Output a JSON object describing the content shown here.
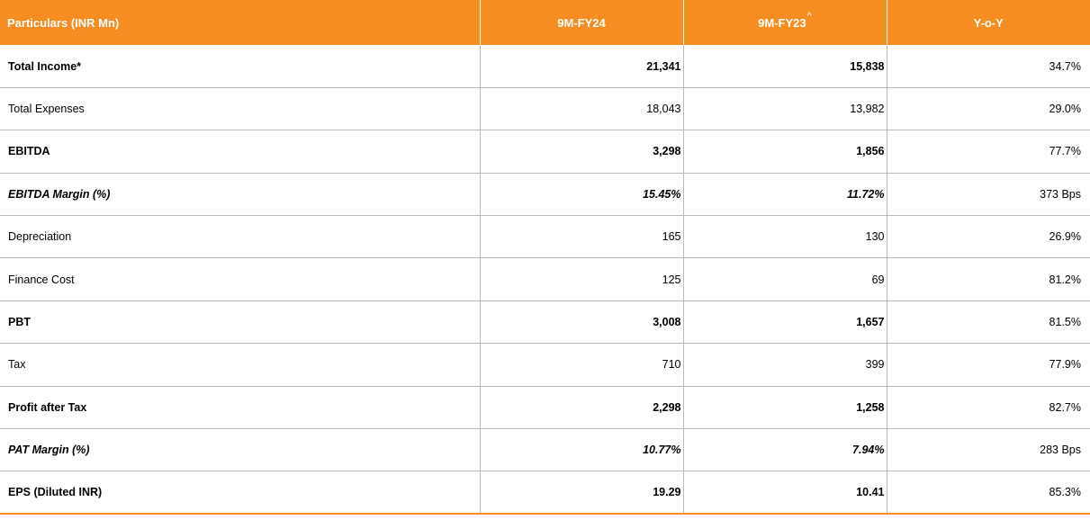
{
  "table": {
    "headers": {
      "particulars": "Particulars (INR Mn)",
      "col1": "9M-FY24",
      "col2": "9M-FY23",
      "col2_mark": "^",
      "col3": "Y-o-Y"
    },
    "rows": [
      {
        "label": "Total Income*",
        "v1": "21,341",
        "v2": "15,838",
        "v3": "34.7%"
      },
      {
        "label": "Total Expenses",
        "v1": "18,043",
        "v2": "13,982",
        "v3": "29.0%"
      },
      {
        "label": "EBITDA",
        "v1": "3,298",
        "v2": "1,856",
        "v3": "77.7%"
      },
      {
        "label": "EBITDA Margin (%)",
        "v1": "15.45%",
        "v2": "11.72%",
        "v3": "373 Bps"
      },
      {
        "label": "Depreciation",
        "v1": "165",
        "v2": "130",
        "v3": "26.9%"
      },
      {
        "label": "Finance Cost",
        "v1": "125",
        "v2": "69",
        "v3": "81.2%"
      },
      {
        "label": "PBT",
        "v1": "3,008",
        "v2": "1,657",
        "v3": "81.5%"
      },
      {
        "label": "Tax",
        "v1": "710",
        "v2": "399",
        "v3": "77.9%"
      },
      {
        "label": "Profit after Tax",
        "v1": "2,298",
        "v2": "1,258",
        "v3": "82.7%"
      },
      {
        "label": "PAT Margin (%)",
        "v1": "10.77%",
        "v2": "7.94%",
        "v3": "283 Bps"
      },
      {
        "label": "EPS (Diluted INR)",
        "v1": "19.29",
        "v2": "10.41",
        "v3": "85.3%"
      }
    ]
  },
  "colors": {
    "header_bg": "#f58d22",
    "header_text": "#ffffff",
    "grid": "#b9b9b9"
  }
}
